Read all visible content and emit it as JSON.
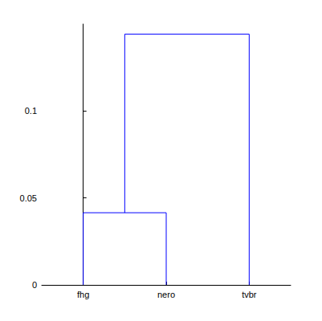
{
  "chart_data": {
    "type": "dendrogram",
    "categories": [
      "fhg",
      "nero",
      "tvbr"
    ],
    "merges": [
      {
        "left": [
          "fhg"
        ],
        "right": [
          "nero"
        ],
        "height": 0.0415
      },
      {
        "left": [
          "fhg",
          "nero"
        ],
        "right": [
          "tvbr"
        ],
        "height": 0.1442
      }
    ],
    "color": "#0000ff",
    "ylim": [
      0,
      0.15
    ],
    "yticks": [
      0,
      0.05,
      0.1
    ],
    "grid": false
  }
}
